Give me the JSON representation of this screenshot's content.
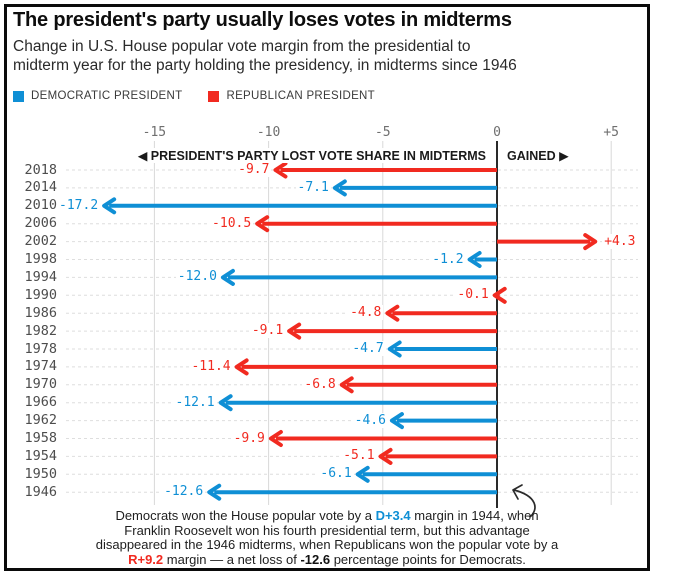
{
  "header": {
    "title": "The president's party usually loses votes in midterms",
    "subtitle_line1": "Change in U.S. House popular vote margin from the presidential to",
    "subtitle_line2": "midterm year for the party holding the presidency, in midterms since 1946"
  },
  "legend": {
    "democratic": "DEMOCRATIC PRESIDENT",
    "republican": "REPUBLICAN PRESIDENT"
  },
  "chart_data": {
    "type": "bar",
    "orientation": "horizontal-diverging-arrows",
    "title": "The president's party usually loses votes in midterms",
    "xlabel_lost": "◀ PRESIDENT'S PARTY LOST VOTE SHARE IN MIDTERMS",
    "xlabel_gained": "GAINED ▶",
    "xlim": [
      -18.5,
      6.3
    ],
    "grid": true,
    "x_ticks": [
      {
        "label": "-15",
        "value": -15
      },
      {
        "label": "-10",
        "value": -10
      },
      {
        "label": "-5",
        "value": -5
      },
      {
        "label": "0",
        "value": 0
      },
      {
        "label": "+5",
        "value": 5
      }
    ],
    "colors": {
      "democratic": "#0f8fd5",
      "republican": "#f12a20"
    },
    "rows": [
      {
        "year": "2018",
        "value": -9.7,
        "label": "-9.7",
        "party": "R"
      },
      {
        "year": "2014",
        "value": -7.1,
        "label": "-7.1",
        "party": "D"
      },
      {
        "year": "2010",
        "value": -17.2,
        "label": "-17.2",
        "party": "D"
      },
      {
        "year": "2006",
        "value": -10.5,
        "label": "-10.5",
        "party": "R"
      },
      {
        "year": "2002",
        "value": 4.3,
        "label": "+4.3",
        "party": "R"
      },
      {
        "year": "1998",
        "value": -1.2,
        "label": "-1.2",
        "party": "D"
      },
      {
        "year": "1994",
        "value": -12.0,
        "label": "-12.0",
        "party": "D"
      },
      {
        "year": "1990",
        "value": -0.1,
        "label": "-0.1",
        "party": "R"
      },
      {
        "year": "1986",
        "value": -4.8,
        "label": "-4.8",
        "party": "R"
      },
      {
        "year": "1982",
        "value": -9.1,
        "label": "-9.1",
        "party": "R"
      },
      {
        "year": "1978",
        "value": -4.7,
        "label": "-4.7",
        "party": "D"
      },
      {
        "year": "1974",
        "value": -11.4,
        "label": "-11.4",
        "party": "R"
      },
      {
        "year": "1970",
        "value": -6.8,
        "label": "-6.8",
        "party": "R"
      },
      {
        "year": "1966",
        "value": -12.1,
        "label": "-12.1",
        "party": "D"
      },
      {
        "year": "1962",
        "value": -4.6,
        "label": "-4.6",
        "party": "D"
      },
      {
        "year": "1958",
        "value": -9.9,
        "label": "-9.9",
        "party": "R"
      },
      {
        "year": "1954",
        "value": -5.1,
        "label": "-5.1",
        "party": "R"
      },
      {
        "year": "1950",
        "value": -6.1,
        "label": "-6.1",
        "party": "D"
      },
      {
        "year": "1946",
        "value": -12.6,
        "label": "-12.6",
        "party": "D"
      }
    ]
  },
  "footnote": {
    "line1_a": "Democrats won the House popular vote by a ",
    "line1_b": "D+3.4",
    "line1_c": " margin in 1944, when",
    "line2": "Franklin Roosevelt won his fourth presidential term, but this advantage",
    "line3": "disappeared in the 1946 midterms, when Republicans won the popular vote by a",
    "line4_a": "R+9.2",
    "line4_b": " margin — a net loss of ",
    "line4_c": "-12.6",
    "line4_d": " percentage points for Democrats."
  }
}
